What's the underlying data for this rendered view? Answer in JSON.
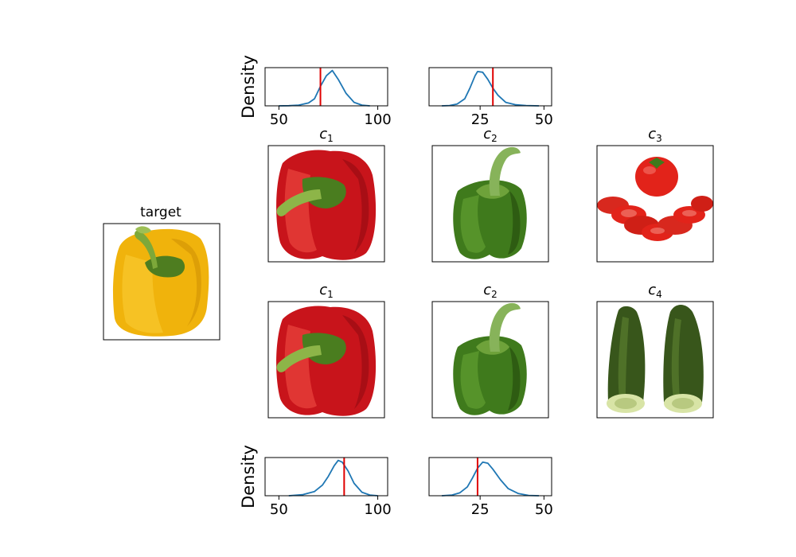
{
  "panels": {
    "target": {
      "title": "target",
      "image": "yellow-bell-pepper"
    },
    "row1": [
      {
        "title_base": "c",
        "title_sub": "1",
        "image": "red-bell-pepper"
      },
      {
        "title_base": "c",
        "title_sub": "2",
        "image": "green-bell-pepper"
      },
      {
        "title_base": "c",
        "title_sub": "3",
        "image": "sliced-tomato"
      }
    ],
    "row2": [
      {
        "title_base": "c",
        "title_sub": "1",
        "image": "red-bell-pepper"
      },
      {
        "title_base": "c",
        "title_sub": "2",
        "image": "green-bell-pepper"
      },
      {
        "title_base": "c",
        "title_sub": "4",
        "image": "halved-cucumber"
      }
    ]
  },
  "colors": {
    "curve": "#1f77b4",
    "marker": "#e00000",
    "red_pepper": "#c8141b",
    "green_pepper": "#3f7a1c",
    "yellow_pepper": "#f0b30c",
    "tomato": "#e2231a",
    "cucumber": "#38561b"
  },
  "chart_data": [
    {
      "type": "line",
      "ylabel": "Density",
      "xlim": [
        43,
        105
      ],
      "xticks": [
        50,
        100
      ],
      "tick_labels": [
        "50",
        "100"
      ],
      "marker_x": 71,
      "series": [
        {
          "x": [
            50,
            55,
            60,
            65,
            68,
            71,
            74,
            77,
            80,
            84,
            88,
            92,
            96
          ],
          "y": [
            0.0,
            0.005,
            0.02,
            0.08,
            0.2,
            0.55,
            0.85,
            1.0,
            0.75,
            0.35,
            0.1,
            0.02,
            0.0
          ]
        }
      ]
    },
    {
      "type": "line",
      "xlim": [
        5,
        53
      ],
      "xticks": [
        25,
        50
      ],
      "tick_labels": [
        "25",
        "50"
      ],
      "marker_x": 30,
      "series": [
        {
          "x": [
            10,
            13,
            16,
            19,
            21,
            23,
            24,
            26,
            28,
            30,
            32,
            35,
            39,
            43,
            48
          ],
          "y": [
            0.0,
            0.01,
            0.05,
            0.2,
            0.5,
            0.85,
            0.97,
            0.95,
            0.75,
            0.5,
            0.3,
            0.1,
            0.03,
            0.01,
            0.0
          ]
        }
      ]
    },
    {
      "type": "line",
      "ylabel": "Density",
      "xlim": [
        43,
        105
      ],
      "xticks": [
        50,
        100
      ],
      "tick_labels": [
        "50",
        "100"
      ],
      "marker_x": 83,
      "series": [
        {
          "x": [
            55,
            62,
            68,
            72,
            75,
            78,
            80,
            82,
            85,
            88,
            92,
            96,
            100
          ],
          "y": [
            0.0,
            0.03,
            0.12,
            0.3,
            0.55,
            0.85,
            1.0,
            0.95,
            0.7,
            0.35,
            0.1,
            0.02,
            0.0
          ]
        }
      ]
    },
    {
      "type": "line",
      "xlim": [
        5,
        53
      ],
      "xticks": [
        25,
        50
      ],
      "tick_labels": [
        "25",
        "50"
      ],
      "marker_x": 24,
      "series": [
        {
          "x": [
            10,
            14,
            17,
            20,
            22,
            24,
            26,
            28,
            30,
            33,
            36,
            40,
            44,
            48
          ],
          "y": [
            0.0,
            0.02,
            0.08,
            0.25,
            0.5,
            0.78,
            0.95,
            0.92,
            0.75,
            0.45,
            0.2,
            0.06,
            0.01,
            0.0
          ]
        }
      ]
    }
  ]
}
